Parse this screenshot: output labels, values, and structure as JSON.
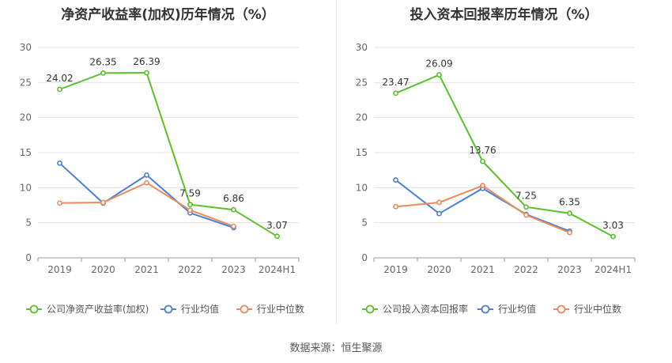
{
  "source": "数据来源：恒生聚源",
  "chart_data": [
    {
      "type": "line",
      "title": "净资产收益率(加权)历年情况（%）",
      "categories": [
        "2019",
        "2020",
        "2021",
        "2022",
        "2023",
        "2024H1"
      ],
      "ylim": [
        0,
        30
      ],
      "yticks": [
        0,
        5,
        10,
        15,
        20,
        25,
        30
      ],
      "grid": true,
      "legend_position": "bottom",
      "series": [
        {
          "name": "公司净资产收益率(加权)",
          "color": "#5ac02c",
          "values": [
            24.02,
            26.35,
            26.39,
            7.59,
            6.86,
            3.07
          ],
          "labels": [
            "24.02",
            "26.35",
            "26.39",
            "7.59",
            "6.86",
            "3.07"
          ]
        },
        {
          "name": "行业均值",
          "color": "#4a7fd6",
          "values": [
            13.5,
            7.8,
            11.8,
            6.4,
            4.3,
            null
          ]
        },
        {
          "name": "行业中位数",
          "color": "#ee8a5a",
          "values": [
            7.8,
            7.9,
            10.7,
            6.8,
            4.5,
            null
          ]
        }
      ]
    },
    {
      "type": "line",
      "title": "投入资本回报率历年情况（%）",
      "categories": [
        "2019",
        "2020",
        "2021",
        "2022",
        "2023",
        "2024H1"
      ],
      "ylim": [
        0,
        30
      ],
      "yticks": [
        0,
        5,
        10,
        15,
        20,
        25,
        30
      ],
      "grid": true,
      "legend_position": "bottom",
      "series": [
        {
          "name": "公司投入资本回报率",
          "color": "#5ac02c",
          "values": [
            23.47,
            26.09,
            13.76,
            7.25,
            6.35,
            3.03
          ],
          "labels": [
            "23.47",
            "26.09",
            "13.76",
            "7.25",
            "6.35",
            "3.03"
          ]
        },
        {
          "name": "行业均值",
          "color": "#4a7fd6",
          "values": [
            11.1,
            6.3,
            9.9,
            6.2,
            3.8,
            null
          ]
        },
        {
          "name": "行业中位数",
          "color": "#ee8a5a",
          "values": [
            7.3,
            7.9,
            10.3,
            6.1,
            3.6,
            null
          ]
        }
      ]
    }
  ]
}
